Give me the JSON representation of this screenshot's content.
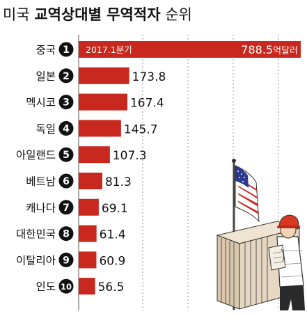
{
  "title": {
    "prefix": "미국 ",
    "main": "교역상대별 무역적자",
    "suffix": " 순위"
  },
  "chart_data": {
    "type": "bar",
    "orientation": "horizontal",
    "title": "미국 교역상대별 무역적자 순위",
    "annotation": "2017.1분기",
    "unit": "억달러",
    "ranks": [
      "1",
      "2",
      "3",
      "4",
      "5",
      "6",
      "7",
      "8",
      "9",
      "10"
    ],
    "categories": [
      "중국",
      "일본",
      "멕시코",
      "독일",
      "아일랜드",
      "베트남",
      "캐나다",
      "대한민국",
      "이탈리아",
      "인도"
    ],
    "values": [
      788.5,
      173.8,
      167.4,
      145.7,
      107.3,
      81.3,
      69.1,
      61.4,
      60.9,
      56.5
    ],
    "value_labels": [
      "788.5",
      "173.8",
      "167.4",
      "145.7",
      "107.3",
      "81.3",
      "69.1",
      "61.4",
      "60.9",
      "56.5"
    ],
    "grid": true,
    "colors": {
      "bar": "#c8281e",
      "grid": "#9a9a9a",
      "badge": "#111111",
      "text": "#111111"
    }
  },
  "illustration": {
    "name": "worker-with-flag-and-container",
    "colors": {
      "flag_red": "#c8281e",
      "flag_blue": "#2b3a8c",
      "helmet": "#d8381f",
      "container": "#e3d3bd"
    }
  }
}
